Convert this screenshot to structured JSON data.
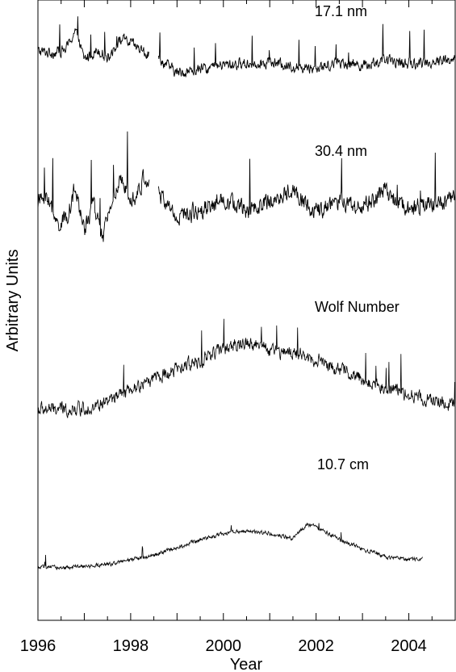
{
  "chart_data": {
    "type": "line",
    "xlabel": "Year",
    "ylabel": "Arbitrary Units",
    "xlim": [
      1996,
      2005
    ],
    "ylim": [
      0,
      4
    ],
    "x_ticks": [
      "1996",
      "1998",
      "2000",
      "2002",
      "2004"
    ],
    "x_tick_values": [
      1996,
      1998,
      2000,
      2002,
      2004
    ],
    "grid": false,
    "series": [
      {
        "name": "17.1 nm",
        "color": "#000000",
        "x_range": [
          1996.0,
          2005.0
        ],
        "gap": [
          1998.4,
          1998.6
        ],
        "keypoints": [
          [
            1996.0,
            3.67
          ],
          [
            1996.3,
            3.66
          ],
          [
            1996.6,
            3.68
          ],
          [
            1996.8,
            3.8
          ],
          [
            1997.0,
            3.62
          ],
          [
            1997.3,
            3.68
          ],
          [
            1997.5,
            3.63
          ],
          [
            1997.8,
            3.75
          ],
          [
            1998.0,
            3.72
          ],
          [
            1998.3,
            3.66
          ],
          [
            1998.6,
            3.62
          ],
          [
            1999.0,
            3.53
          ],
          [
            1999.5,
            3.55
          ],
          [
            2000.0,
            3.58
          ],
          [
            2000.5,
            3.59
          ],
          [
            2001.0,
            3.6
          ],
          [
            2001.5,
            3.57
          ],
          [
            2002.0,
            3.56
          ],
          [
            2002.5,
            3.6
          ],
          [
            2003.0,
            3.58
          ],
          [
            2003.5,
            3.61
          ],
          [
            2004.0,
            3.59
          ],
          [
            2004.5,
            3.6
          ],
          [
            2005.0,
            3.62
          ]
        ],
        "noise": 0.055
      },
      {
        "name": "30.4 nm",
        "color": "#000000",
        "x_range": [
          1996.0,
          2005.0
        ],
        "gap": [
          1998.4,
          1998.6
        ],
        "keypoints": [
          [
            1996.0,
            2.7
          ],
          [
            1996.2,
            2.74
          ],
          [
            1996.4,
            2.55
          ],
          [
            1996.6,
            2.58
          ],
          [
            1996.8,
            2.78
          ],
          [
            1997.0,
            2.52
          ],
          [
            1997.2,
            2.68
          ],
          [
            1997.4,
            2.45
          ],
          [
            1997.6,
            2.72
          ],
          [
            1997.8,
            2.82
          ],
          [
            1998.1,
            2.72
          ],
          [
            1998.3,
            2.86
          ],
          [
            1998.6,
            2.75
          ],
          [
            1999.0,
            2.6
          ],
          [
            1999.5,
            2.65
          ],
          [
            2000.0,
            2.72
          ],
          [
            2000.5,
            2.64
          ],
          [
            2001.0,
            2.7
          ],
          [
            2001.5,
            2.78
          ],
          [
            2002.0,
            2.63
          ],
          [
            2002.5,
            2.7
          ],
          [
            2003.0,
            2.66
          ],
          [
            2003.5,
            2.77
          ],
          [
            2004.0,
            2.64
          ],
          [
            2004.5,
            2.7
          ],
          [
            2005.0,
            2.72
          ]
        ],
        "noise": 0.09
      },
      {
        "name": "Wolf Number",
        "color": "#000000",
        "x_range": [
          1996.0,
          2005.0
        ],
        "keypoints": [
          [
            1996.0,
            1.36
          ],
          [
            1996.5,
            1.36
          ],
          [
            1997.0,
            1.37
          ],
          [
            1997.3,
            1.38
          ],
          [
            1997.6,
            1.42
          ],
          [
            1998.0,
            1.48
          ],
          [
            1998.5,
            1.56
          ],
          [
            1999.0,
            1.62
          ],
          [
            1999.5,
            1.68
          ],
          [
            2000.0,
            1.75
          ],
          [
            2000.5,
            1.8
          ],
          [
            2001.0,
            1.74
          ],
          [
            2001.5,
            1.72
          ],
          [
            2002.0,
            1.68
          ],
          [
            2002.5,
            1.62
          ],
          [
            2003.0,
            1.55
          ],
          [
            2003.5,
            1.5
          ],
          [
            2004.0,
            1.46
          ],
          [
            2004.5,
            1.42
          ],
          [
            2005.0,
            1.38
          ]
        ],
        "noise": 0.07
      },
      {
        "name": "10.7 cm",
        "color": "#000000",
        "x_range": [
          1996.0,
          2004.3
        ],
        "keypoints": [
          [
            1996.0,
            0.34
          ],
          [
            1996.5,
            0.34
          ],
          [
            1997.0,
            0.345
          ],
          [
            1997.5,
            0.36
          ],
          [
            1998.0,
            0.39
          ],
          [
            1998.5,
            0.42
          ],
          [
            1999.0,
            0.47
          ],
          [
            1999.5,
            0.52
          ],
          [
            2000.0,
            0.56
          ],
          [
            2000.5,
            0.58
          ],
          [
            2001.0,
            0.56
          ],
          [
            2001.5,
            0.53
          ],
          [
            2001.8,
            0.62
          ],
          [
            2002.0,
            0.6
          ],
          [
            2002.5,
            0.52
          ],
          [
            2003.0,
            0.46
          ],
          [
            2003.5,
            0.41
          ],
          [
            2004.0,
            0.39
          ],
          [
            2004.3,
            0.4
          ]
        ],
        "noise": 0.02
      }
    ]
  }
}
